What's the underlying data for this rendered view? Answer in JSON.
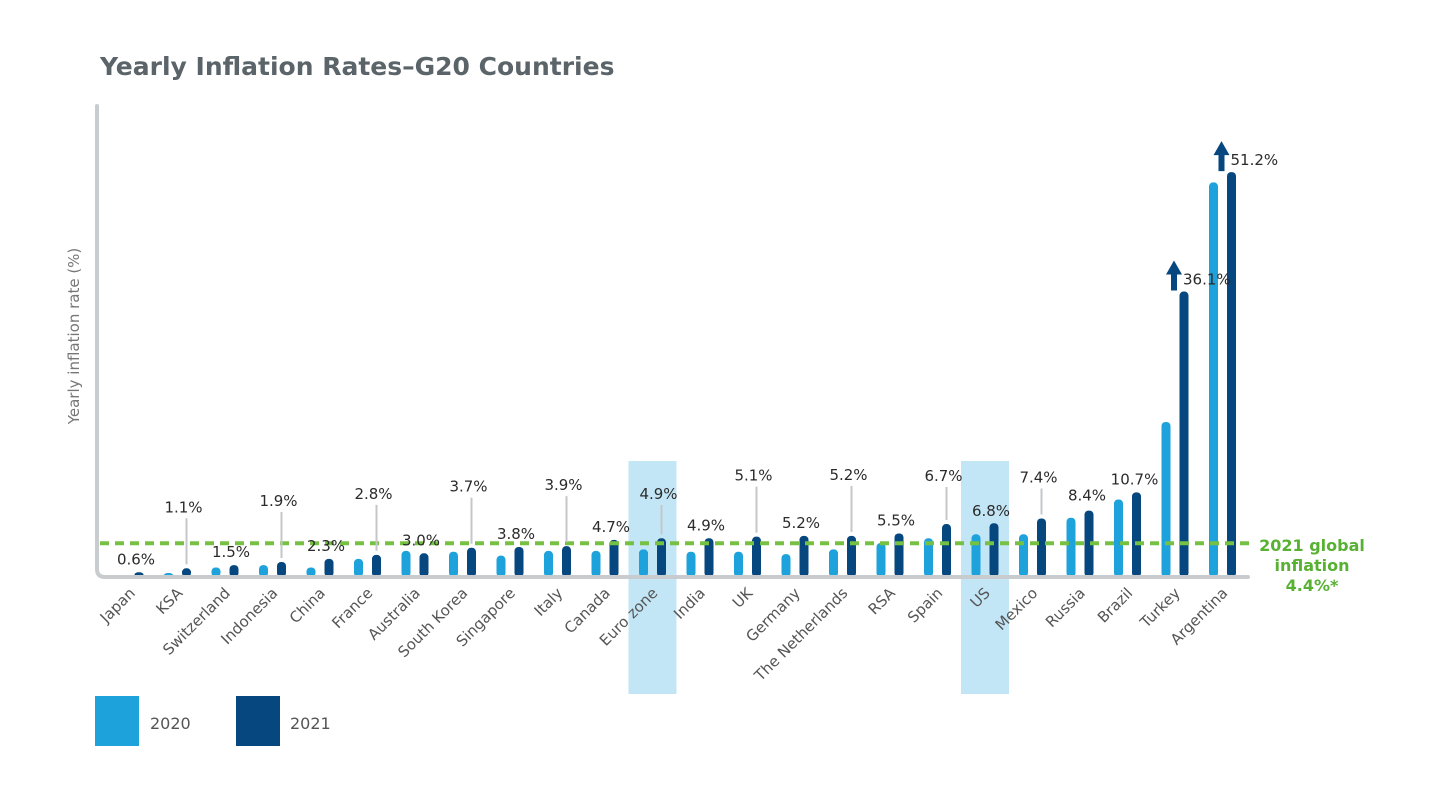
{
  "chart_data": {
    "type": "bar",
    "title": "Yearly Inflation Rates–G20 Countries",
    "ylabel": "Yearly inflation rate (%)",
    "xlabel": "",
    "ylim": [
      0,
      54
    ],
    "categories": [
      "Japan",
      "KSA",
      "Switzerland",
      "Indonesia",
      "China",
      "France",
      "Australia",
      "South Korea",
      "Singapore",
      "Italy",
      "Canada",
      "Euro zone",
      "India",
      "UK",
      "Germany",
      "The Netherlands",
      "RSA",
      "Spain",
      "US",
      "Mexico",
      "Russia",
      "Brazil",
      "Turkey",
      "Argentina"
    ],
    "series": [
      {
        "name": "2020",
        "color": "#1ea2dc",
        "values": [
          0.0,
          0.5,
          1.2,
          1.5,
          1.2,
          2.3,
          3.3,
          3.2,
          2.7,
          3.3,
          3.3,
          3.5,
          3.2,
          3.2,
          2.9,
          3.5,
          4.3,
          4.9,
          5.4,
          5.4,
          7.5,
          9.8,
          19.6,
          49.9
        ]
      },
      {
        "name": "2021",
        "color": "#05477e",
        "values": [
          0.6,
          1.1,
          1.5,
          1.9,
          2.3,
          2.8,
          3.0,
          3.7,
          3.8,
          3.9,
          4.7,
          4.9,
          4.9,
          5.1,
          5.2,
          5.2,
          5.5,
          6.7,
          6.8,
          7.4,
          8.4,
          10.7,
          36.1,
          51.2
        ]
      }
    ],
    "data_labels": [
      "0.6%",
      "1.1%",
      "1.5%",
      "1.9%",
      "2.3%",
      "2.8%",
      "3.0%",
      "3.7%",
      "3.8%",
      "3.9%",
      "4.7%",
      "4.9%",
      "4.9%",
      "5.1%",
      "5.2%",
      "5.2%",
      "5.5%",
      "6.7%",
      "6.8%",
      "7.4%",
      "8.4%",
      "10.7%",
      "36.1%",
      "51.2%"
    ],
    "highlighted_categories": [
      "Euro zone",
      "US"
    ],
    "highlight_color": "#c3e6f6",
    "reference_line": {
      "value": 4.4,
      "label_lines": [
        "2021 global",
        "inflation",
        "4.4%*"
      ],
      "color": "#76c043"
    },
    "legend": {
      "position": "bottom-left",
      "entries": [
        "2020",
        "2021"
      ]
    },
    "grid": false
  }
}
